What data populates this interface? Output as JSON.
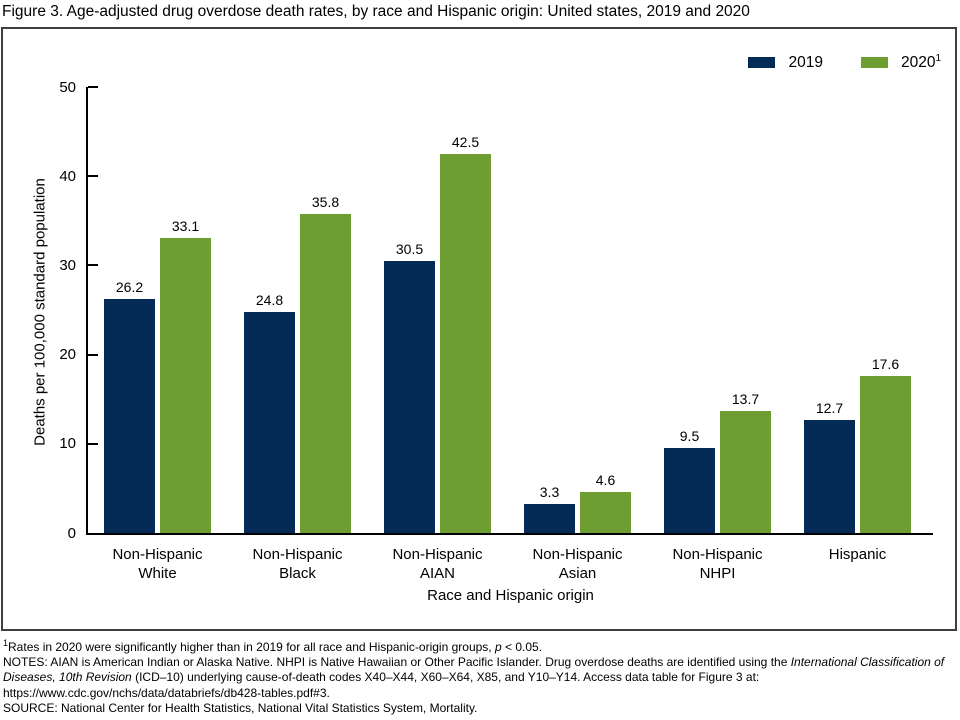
{
  "figure": {
    "title": "Figure 3. Age-adjusted drug overdose death rates, by race and Hispanic origin: United states, 2019 and 2020"
  },
  "colors": {
    "series_2019": "#032B55",
    "series_2020": "#6E9D31",
    "frame_border": "#3F3F3F",
    "axis": "#000000"
  },
  "legend": {
    "position": "top-right",
    "items": [
      {
        "label": "2019",
        "sup": "",
        "color": "#032B55"
      },
      {
        "label": "2020",
        "sup": "1",
        "color": "#6E9D31"
      }
    ]
  },
  "chart_data": {
    "type": "bar",
    "title": "Figure 3. Age-adjusted drug overdose death rates, by race and Hispanic origin: United states, 2019 and 2020",
    "categories": [
      [
        "Non-Hispanic",
        "White"
      ],
      [
        "Non-Hispanic",
        "Black"
      ],
      [
        "Non-Hispanic",
        "AIAN"
      ],
      [
        "Non-Hispanic",
        "Asian"
      ],
      [
        "Non-Hispanic",
        "NHPI"
      ],
      [
        "Hispanic"
      ]
    ],
    "series": [
      {
        "name": "2019",
        "color": "#032B55",
        "values": [
          26.2,
          24.8,
          30.5,
          3.3,
          9.5,
          12.7
        ]
      },
      {
        "name": "2020",
        "sup": "1",
        "color": "#6E9D31",
        "values": [
          33.1,
          35.8,
          42.5,
          4.6,
          13.7,
          17.6
        ]
      }
    ],
    "xlabel": "Race and Hispanic origin",
    "ylabel": "Deaths per 100,000 standard population",
    "ylim": [
      0,
      50
    ],
    "yticks": [
      0,
      10,
      20,
      30,
      40,
      50
    ],
    "grid": false,
    "value_labels": true,
    "legend_position": "top-right"
  },
  "footnotes": {
    "significance": [
      {
        "text": "1",
        "sup": true
      },
      {
        "text": "Rates in 2020 were significantly higher than in 2019 for all race and Hispanic-origin groups, "
      },
      {
        "text": "p",
        "italic": true
      },
      {
        "text": " < 0.05."
      }
    ],
    "notes": [
      {
        "text": "NOTES: AIAN is American Indian or Alaska Native. NHPI is Native Hawaiian or Other Pacific Islander. Drug overdose deaths are identified using the "
      },
      {
        "text": "International Classification of Diseases, 10th Revision",
        "italic": true
      },
      {
        "text": " (ICD–10) underlying cause-of-death codes X40–X44, X60–X64, X85, and Y10–Y14. Access data table for Figure 3 at: https://www.cdc.gov/nchs/data/databriefs/db428-tables.pdf#3."
      }
    ],
    "source": [
      {
        "text": "SOURCE: National Center for Health Statistics, National Vital Statistics System, Mortality."
      }
    ]
  }
}
